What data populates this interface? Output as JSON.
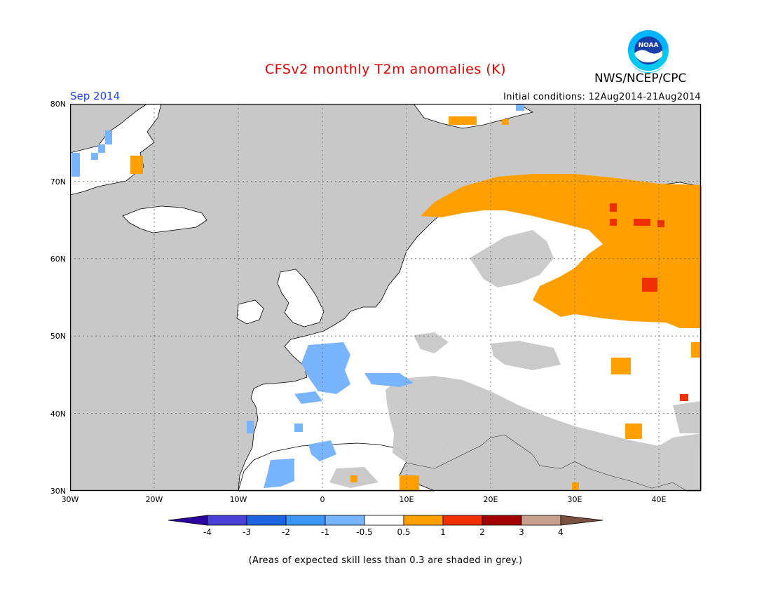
{
  "header": {
    "title": "CFSv2 monthly T2m anomalies (K)",
    "agency": "NWS/NCEP/CPC",
    "logo_text": "NOAA",
    "forecast_month": "Sep 2014",
    "initial_conditions": "Initial conditions: 12Aug2014-21Aug2014"
  },
  "map": {
    "lat_labels": [
      "80N",
      "70N",
      "60N",
      "50N",
      "40N",
      "30N"
    ],
    "lon_labels": [
      "30W",
      "20W",
      "10W",
      "0",
      "10E",
      "20E",
      "30E",
      "40E"
    ],
    "lon_range": [
      -30,
      45
    ],
    "lat_range": [
      30,
      80
    ],
    "colors": {
      "ocean": "#c8c8c8",
      "land": "#ffffff",
      "skill_shading": "#c8c8c8",
      "warm_05_1": "#ffa000",
      "warm_1_2": "#f03000",
      "cold_05_1": "#78b4ff"
    },
    "features": [
      "greenland-coast",
      "svalbard",
      "iceland",
      "british-isles",
      "scandinavia",
      "western-europe",
      "iberia",
      "italy",
      "balkans",
      "turkey",
      "north-africa",
      "russia"
    ]
  },
  "colorbar": {
    "labels": [
      "-4",
      "-3",
      "-2",
      "-1",
      "-0.5",
      "0.5",
      "1",
      "2",
      "3",
      "4"
    ],
    "colors": [
      "#2a00a0",
      "#4a40d6",
      "#1e64e0",
      "#3c96f5",
      "#78b4ff",
      "#ffffff",
      "#ffa000",
      "#f03000",
      "#a00000",
      "#c8a090",
      "#7a5040"
    ]
  },
  "footnote": "(Areas of expected skill less than 0.3 are shaded in grey.)"
}
